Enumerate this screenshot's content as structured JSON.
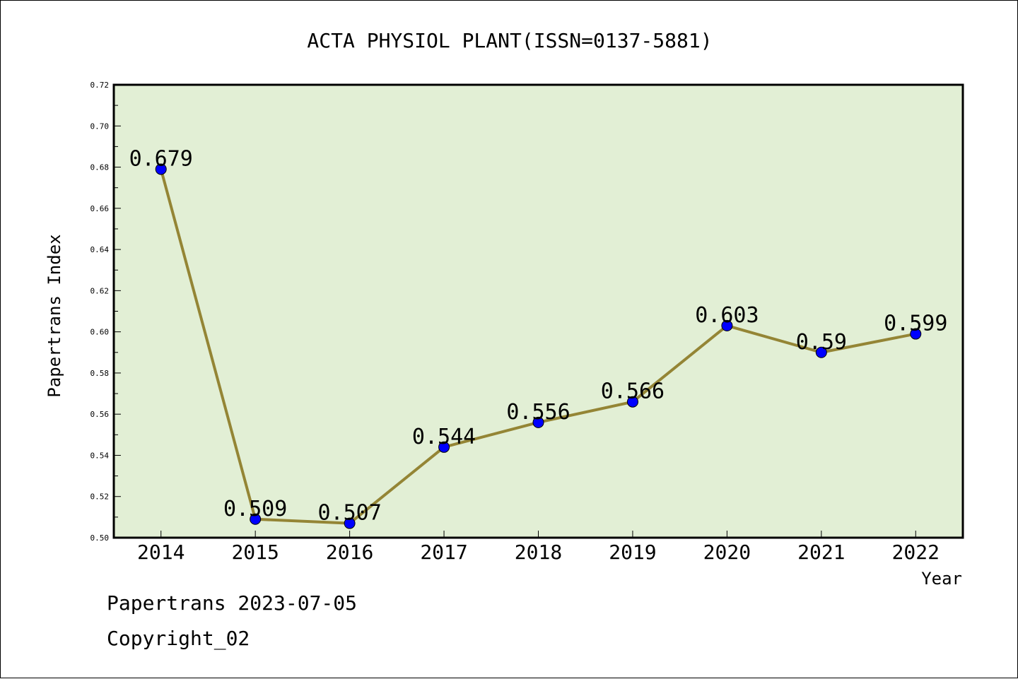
{
  "chart_data": {
    "type": "line",
    "title": "ACTA PHYSIOL PLANT(ISSN=0137-5881)",
    "xlabel": "Year",
    "ylabel": "Papertrans Index",
    "categories": [
      "2014",
      "2015",
      "2016",
      "2017",
      "2018",
      "2019",
      "2020",
      "2021",
      "2022"
    ],
    "values": [
      0.679,
      0.509,
      0.507,
      0.544,
      0.556,
      0.566,
      0.603,
      0.59,
      0.599
    ],
    "data_labels": [
      "0.679",
      "0.509",
      "0.507",
      "0.544",
      "0.556",
      "0.566",
      "0.603",
      "0.59",
      "0.599"
    ],
    "ylim": [
      0.5,
      0.72
    ],
    "yticks": [
      "0.50",
      "0.52",
      "0.54",
      "0.56",
      "0.58",
      "0.60",
      "0.62",
      "0.64",
      "0.66",
      "0.68",
      "0.70",
      "0.72"
    ],
    "grid": false,
    "colors": {
      "plot_background": "#e2efd5",
      "line": "#948535",
      "marker": "#0000ff"
    }
  },
  "footer": {
    "line1": "Papertrans 2023-07-05",
    "line2": "Copyright_02"
  }
}
